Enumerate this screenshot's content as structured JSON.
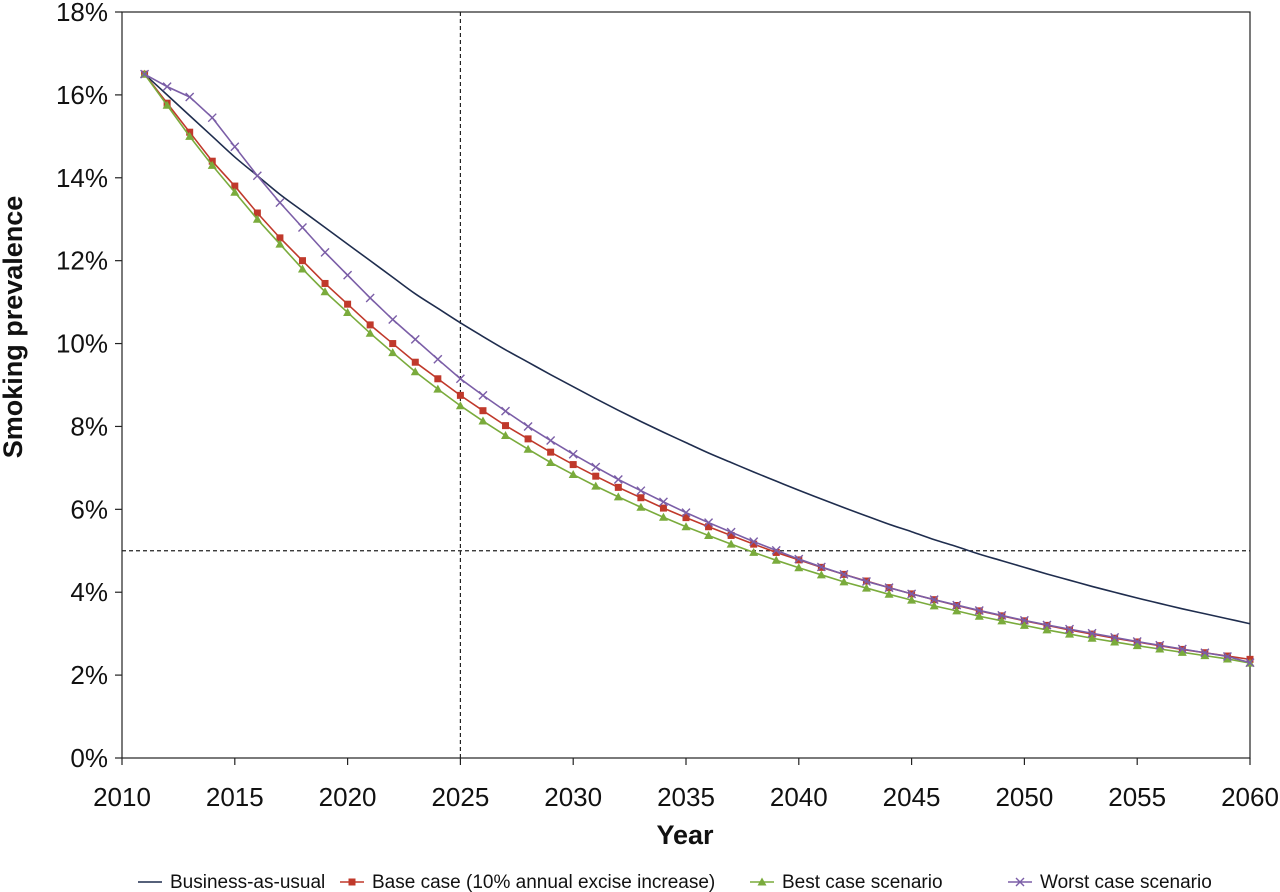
{
  "chart_data": {
    "type": "line",
    "xlabel": "Year",
    "ylabel": "Smoking prevalence",
    "xlim": [
      2010,
      2060
    ],
    "ylim": [
      0,
      18
    ],
    "x_ticks": [
      2010,
      2015,
      2020,
      2025,
      2030,
      2035,
      2040,
      2045,
      2050,
      2055,
      2060
    ],
    "y_ticks": [
      0,
      2,
      4,
      6,
      8,
      10,
      12,
      14,
      16,
      18
    ],
    "y_tick_format": "percent",
    "reference_lines": [
      {
        "orientation": "vertical",
        "value": 2025,
        "style": "dashed"
      },
      {
        "orientation": "horizontal",
        "value": 5,
        "style": "dashed"
      }
    ],
    "grid": false,
    "legend_position": "bottom",
    "series": [
      {
        "name": "Business-as-usual",
        "color": "#1f2d4e",
        "marker": "none",
        "x": [
          2011,
          2012,
          2013,
          2014,
          2015,
          2016,
          2017,
          2018,
          2019,
          2020,
          2021,
          2022,
          2023,
          2024,
          2025,
          2026,
          2027,
          2028,
          2029,
          2030,
          2031,
          2032,
          2033,
          2034,
          2035,
          2036,
          2037,
          2038,
          2039,
          2040,
          2041,
          2042,
          2043,
          2044,
          2045,
          2046,
          2047,
          2048,
          2049,
          2050,
          2051,
          2052,
          2053,
          2054,
          2055,
          2056,
          2057,
          2058,
          2059,
          2060
        ],
        "values": [
          16.5,
          16.0,
          15.5,
          15.0,
          14.5,
          14.05,
          13.6,
          13.2,
          12.8,
          12.4,
          12.0,
          11.6,
          11.2,
          10.85,
          10.5,
          10.17,
          9.85,
          9.55,
          9.25,
          8.96,
          8.67,
          8.39,
          8.12,
          7.86,
          7.61,
          7.36,
          7.13,
          6.9,
          6.68,
          6.46,
          6.25,
          6.04,
          5.84,
          5.64,
          5.46,
          5.27,
          5.1,
          4.92,
          4.76,
          4.6,
          4.44,
          4.29,
          4.14,
          4.0,
          3.86,
          3.73,
          3.6,
          3.48,
          3.36,
          3.24
        ]
      },
      {
        "name": "Base case (10% annual excise increase)",
        "color": "#c0392b",
        "marker": "square",
        "x": [
          2011,
          2012,
          2013,
          2014,
          2015,
          2016,
          2017,
          2018,
          2019,
          2020,
          2021,
          2022,
          2023,
          2024,
          2025,
          2026,
          2027,
          2028,
          2029,
          2030,
          2031,
          2032,
          2033,
          2034,
          2035,
          2036,
          2037,
          2038,
          2039,
          2040,
          2041,
          2042,
          2043,
          2044,
          2045,
          2046,
          2047,
          2048,
          2049,
          2050,
          2051,
          2052,
          2053,
          2054,
          2055,
          2056,
          2057,
          2058,
          2059,
          2060
        ],
        "values": [
          16.5,
          15.8,
          15.1,
          14.4,
          13.8,
          13.15,
          12.55,
          12.0,
          11.45,
          10.95,
          10.45,
          10.0,
          9.55,
          9.15,
          8.75,
          8.38,
          8.02,
          7.7,
          7.38,
          7.08,
          6.8,
          6.53,
          6.28,
          6.03,
          5.8,
          5.58,
          5.37,
          5.16,
          4.96,
          4.78,
          4.6,
          4.43,
          4.27,
          4.11,
          3.96,
          3.82,
          3.68,
          3.55,
          3.43,
          3.31,
          3.2,
          3.09,
          2.99,
          2.89,
          2.8,
          2.71,
          2.62,
          2.54,
          2.46,
          2.38
        ]
      },
      {
        "name": "Best case scenario",
        "color": "#7aab3c",
        "marker": "triangle",
        "x": [
          2011,
          2012,
          2013,
          2014,
          2015,
          2016,
          2017,
          2018,
          2019,
          2020,
          2021,
          2022,
          2023,
          2024,
          2025,
          2026,
          2027,
          2028,
          2029,
          2030,
          2031,
          2032,
          2033,
          2034,
          2035,
          2036,
          2037,
          2038,
          2039,
          2040,
          2041,
          2042,
          2043,
          2044,
          2045,
          2046,
          2047,
          2048,
          2049,
          2050,
          2051,
          2052,
          2053,
          2054,
          2055,
          2056,
          2057,
          2058,
          2059,
          2060
        ],
        "values": [
          16.5,
          15.75,
          15.0,
          14.3,
          13.65,
          13.0,
          12.4,
          11.8,
          11.25,
          10.75,
          10.25,
          9.78,
          9.32,
          8.9,
          8.5,
          8.13,
          7.78,
          7.45,
          7.13,
          6.84,
          6.56,
          6.3,
          6.05,
          5.81,
          5.58,
          5.37,
          5.16,
          4.96,
          4.77,
          4.59,
          4.42,
          4.25,
          4.1,
          3.95,
          3.81,
          3.67,
          3.55,
          3.42,
          3.31,
          3.2,
          3.09,
          2.99,
          2.89,
          2.8,
          2.71,
          2.63,
          2.55,
          2.47,
          2.39,
          2.29
        ]
      },
      {
        "name": "Worst case scenario",
        "color": "#7b5ea7",
        "marker": "x",
        "x": [
          2011,
          2012,
          2013,
          2014,
          2015,
          2016,
          2017,
          2018,
          2019,
          2020,
          2021,
          2022,
          2023,
          2024,
          2025,
          2026,
          2027,
          2028,
          2029,
          2030,
          2031,
          2032,
          2033,
          2034,
          2035,
          2036,
          2037,
          2038,
          2039,
          2040,
          2041,
          2042,
          2043,
          2044,
          2045,
          2046,
          2047,
          2048,
          2049,
          2050,
          2051,
          2052,
          2053,
          2054,
          2055,
          2056,
          2057,
          2058,
          2059,
          2060
        ],
        "values": [
          16.5,
          16.2,
          15.95,
          15.45,
          14.75,
          14.05,
          13.4,
          12.8,
          12.2,
          11.65,
          11.1,
          10.58,
          10.1,
          9.62,
          9.15,
          8.75,
          8.37,
          8.0,
          7.66,
          7.33,
          7.02,
          6.72,
          6.45,
          6.18,
          5.92,
          5.68,
          5.45,
          5.22,
          5.01,
          4.8,
          4.61,
          4.43,
          4.26,
          4.11,
          3.96,
          3.82,
          3.69,
          3.56,
          3.44,
          3.32,
          3.21,
          3.11,
          3.01,
          2.91,
          2.81,
          2.72,
          2.63,
          2.54,
          2.45,
          2.3
        ]
      }
    ]
  }
}
